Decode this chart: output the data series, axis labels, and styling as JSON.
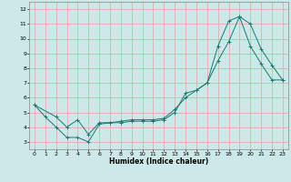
{
  "xlabel": "Humidex (Indice chaleur)",
  "bg_color": "#cce8e8",
  "grid_color_major": "#e8a0a0",
  "grid_color_minor": "#b8d8d8",
  "line_color": "#1a7a6e",
  "xlim": [
    -0.5,
    23.5
  ],
  "ylim": [
    2.5,
    12.5
  ],
  "xticks": [
    0,
    1,
    2,
    3,
    4,
    5,
    6,
    7,
    8,
    9,
    10,
    11,
    12,
    13,
    14,
    15,
    16,
    17,
    18,
    19,
    20,
    21,
    22,
    23
  ],
  "yticks": [
    3,
    4,
    5,
    6,
    7,
    8,
    9,
    10,
    11,
    12
  ],
  "line1_x": [
    0,
    1,
    2,
    3,
    4,
    5,
    6,
    7,
    8,
    9,
    10,
    11,
    12,
    13,
    14,
    15,
    16,
    17,
    18,
    19,
    20,
    21,
    22,
    23
  ],
  "line1_y": [
    5.5,
    4.7,
    4.0,
    3.3,
    3.3,
    3.0,
    4.2,
    4.3,
    4.3,
    4.4,
    4.4,
    4.4,
    4.5,
    5.0,
    6.3,
    6.5,
    7.0,
    8.5,
    9.8,
    11.5,
    9.5,
    8.3,
    7.2,
    7.2
  ],
  "line2_x": [
    0,
    2,
    3,
    4,
    5,
    6,
    7,
    8,
    9,
    10,
    11,
    12,
    13,
    14,
    15,
    16,
    17,
    18,
    19,
    20,
    21,
    22,
    23
  ],
  "line2_y": [
    5.5,
    4.7,
    4.0,
    4.5,
    3.5,
    4.3,
    4.3,
    4.4,
    4.5,
    4.5,
    4.5,
    4.6,
    5.2,
    6.0,
    6.5,
    7.0,
    9.5,
    11.2,
    11.5,
    11.0,
    9.3,
    8.2,
    7.2
  ],
  "xlabel_fontsize": 5.5,
  "tick_fontsize": 4.5,
  "linewidth": 0.7,
  "markersize": 2.5
}
